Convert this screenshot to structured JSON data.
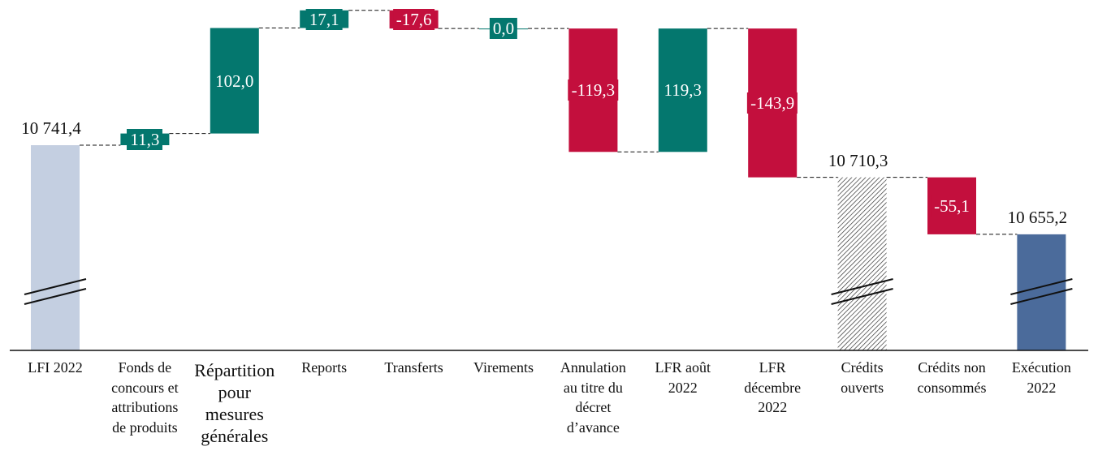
{
  "chart_data": {
    "type": "waterfall",
    "title": "",
    "xlabel": "",
    "ylabel": "",
    "axis_break": true,
    "grid": false,
    "categories": [
      "LFI 2022",
      "Fonds de\nconcours et\nattributions\nde produits",
      "Répartition\npour\nmesures\ngénérales",
      "Reports",
      "Transferts",
      "Virements",
      "Annulation\nau titre du\ndécret\nd’avance",
      "LFR août\n2022",
      "LFR\ndécembre\n2022",
      "Crédits\nouverts",
      "Crédits non\nconsommés",
      "Exécution\n2022"
    ],
    "values": [
      10741.4,
      11.3,
      102.0,
      17.1,
      -17.6,
      0.0,
      -119.3,
      119.3,
      -143.9,
      10710.3,
      -55.1,
      10655.2
    ],
    "kinds": [
      "total",
      "delta",
      "delta",
      "delta",
      "delta",
      "delta",
      "delta",
      "delta",
      "delta",
      "total",
      "delta",
      "total"
    ],
    "labels": [
      "10 741,4",
      "11,3",
      "102,0",
      "17,1",
      "-17,6",
      "0,0",
      "-119,3",
      "119,3",
      "-143,9",
      "10 710,3",
      "-55,1",
      "10 655,2"
    ],
    "colors": {
      "increase": "#04776E",
      "decrease": "#C30F3D",
      "lfi": "#C4CFE1",
      "credits_ouverts": "hatched",
      "execution": "#4B6B9B"
    }
  }
}
